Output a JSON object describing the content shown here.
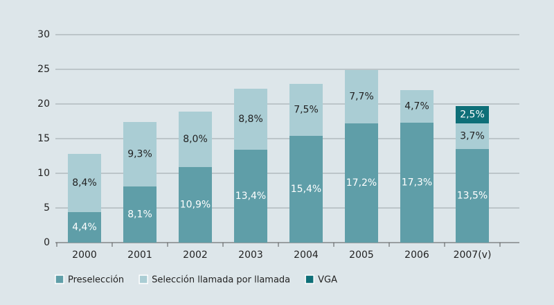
{
  "chart_data": {
    "type": "stacked-bar",
    "categories": [
      "2000",
      "2001",
      "2002",
      "2003",
      "2004",
      "2005",
      "2006",
      "2007(v)"
    ],
    "series": [
      {
        "name": "Preselección",
        "color": "#5f9ea8",
        "values": [
          4.4,
          8.1,
          10.9,
          13.4,
          15.4,
          17.2,
          17.3,
          13.5
        ],
        "value_labels": [
          "4,4%",
          "8,1%",
          "10,9%",
          "13,4%",
          "15,4%",
          "17,2%",
          "17,3%",
          "13,5%"
        ]
      },
      {
        "name": "Selección llamada por llamada",
        "color": "#aacdd4",
        "values": [
          8.4,
          9.3,
          8.0,
          8.8,
          7.5,
          7.7,
          4.7,
          3.7
        ],
        "value_labels": [
          "8,4%",
          "9,3%",
          "8,0%",
          "8,8%",
          "7,5%",
          "7,7%",
          "4,7%",
          "3,7%"
        ]
      },
      {
        "name": "VGA",
        "color": "#0e6f78",
        "values": [
          null,
          null,
          null,
          null,
          null,
          null,
          null,
          2.5
        ],
        "value_labels": [
          null,
          null,
          null,
          null,
          null,
          null,
          null,
          "2,5%"
        ]
      }
    ],
    "ylim": [
      0,
      30
    ],
    "yticks": [
      0,
      5,
      10,
      15,
      20,
      25,
      30
    ],
    "grid": true,
    "legend": "bottom"
  }
}
